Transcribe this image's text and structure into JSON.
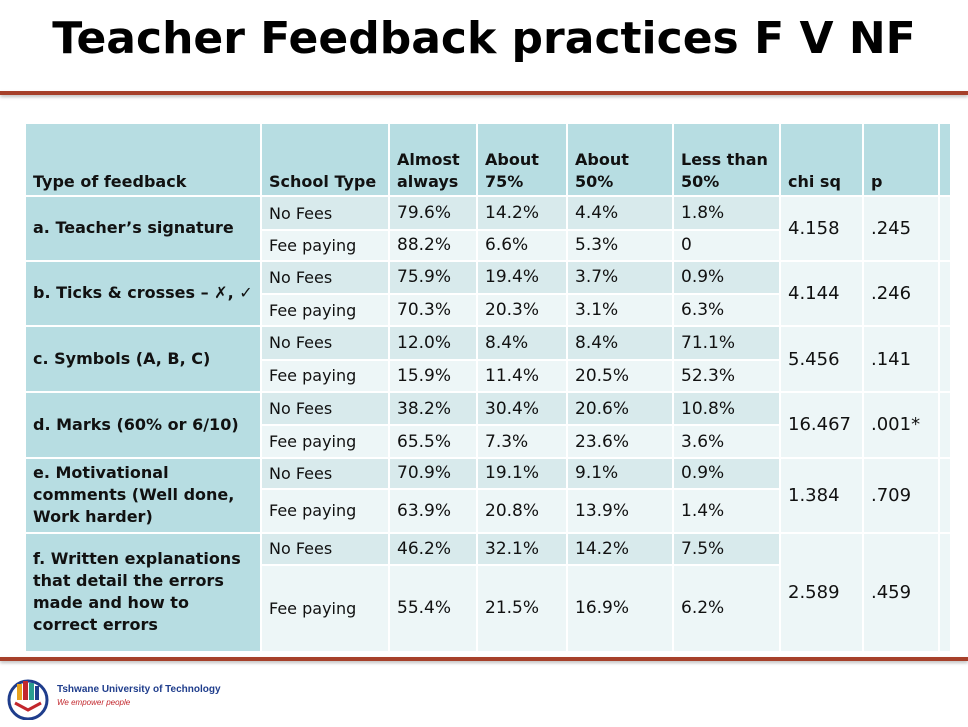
{
  "title": "Teacher Feedback practices F V NF",
  "table": {
    "headers": {
      "type": "Type of feedback",
      "school": "School Type",
      "almost_always": "Almost always",
      "about_75": "About 75%",
      "about_50": "About 50%",
      "less_than_50": "Less than 50%",
      "chi_sq": "chi sq",
      "p": "p"
    },
    "groups": [
      {
        "type": "a. Teacher’s signature",
        "chi_sq": "4.158",
        "p": ".245",
        "rows": [
          {
            "school": "No Fees",
            "values": [
              "79.6%",
              "14.2%",
              "4.4%",
              "1.8%"
            ]
          },
          {
            "school": "Fee paying",
            "values": [
              "88.2%",
              "6.6%",
              "5.3%",
              "0"
            ]
          }
        ]
      },
      {
        "type": "b. Ticks & crosses – ✗, ✓",
        "chi_sq": "4.144",
        "p": ".246",
        "rows": [
          {
            "school": "No Fees",
            "values": [
              "75.9%",
              "19.4%",
              "3.7%",
              "0.9%"
            ]
          },
          {
            "school": "Fee paying",
            "values": [
              "70.3%",
              "20.3%",
              "3.1%",
              "6.3%"
            ]
          }
        ]
      },
      {
        "type": "c. Symbols (A, B, C)",
        "chi_sq": "5.456",
        "p": ".141",
        "rows": [
          {
            "school": "No Fees",
            "values": [
              "12.0%",
              "8.4%",
              "8.4%",
              "71.1%"
            ]
          },
          {
            "school": "Fee paying",
            "values": [
              "15.9%",
              "11.4%",
              "20.5%",
              "52.3%"
            ]
          }
        ]
      },
      {
        "type": "d. Marks (60% or 6/10)",
        "chi_sq": "16.467",
        "p": ".001*",
        "rows": [
          {
            "school": "No Fees",
            "values": [
              "38.2%",
              "30.4%",
              "20.6%",
              "10.8%"
            ]
          },
          {
            "school": "Fee paying",
            "values": [
              "65.5%",
              "7.3%",
              "23.6%",
              "3.6%"
            ]
          }
        ]
      },
      {
        "type": "e. Motivational comments (Well done, Work harder)",
        "chi_sq": "1.384",
        "p": ".709",
        "rows": [
          {
            "school": "No Fees",
            "values": [
              "70.9%",
              "19.1%",
              "9.1%",
              "0.9%"
            ]
          },
          {
            "school": "Fee paying",
            "values": [
              "63.9%",
              "20.8%",
              "13.9%",
              "1.4%"
            ]
          }
        ]
      },
      {
        "type": "f. Written explanations that detail the errors made and how to correct errors",
        "chi_sq": "2.589",
        "p": ".459",
        "rows": [
          {
            "school": "No Fees",
            "values": [
              "46.2%",
              "32.1%",
              "14.2%",
              "7.5%"
            ]
          },
          {
            "school": "Fee paying",
            "values": [
              "55.4%",
              "21.5%",
              "16.9%",
              "6.2%"
            ]
          }
        ]
      }
    ]
  },
  "footer": {
    "university": "Tshwane University of Technology",
    "slogan": "We empower people"
  },
  "colors": {
    "accent_rule": "#a6402a",
    "header_fill": "#b7dde2",
    "row_dark": "#d8eaec",
    "row_light": "#edf6f7"
  }
}
